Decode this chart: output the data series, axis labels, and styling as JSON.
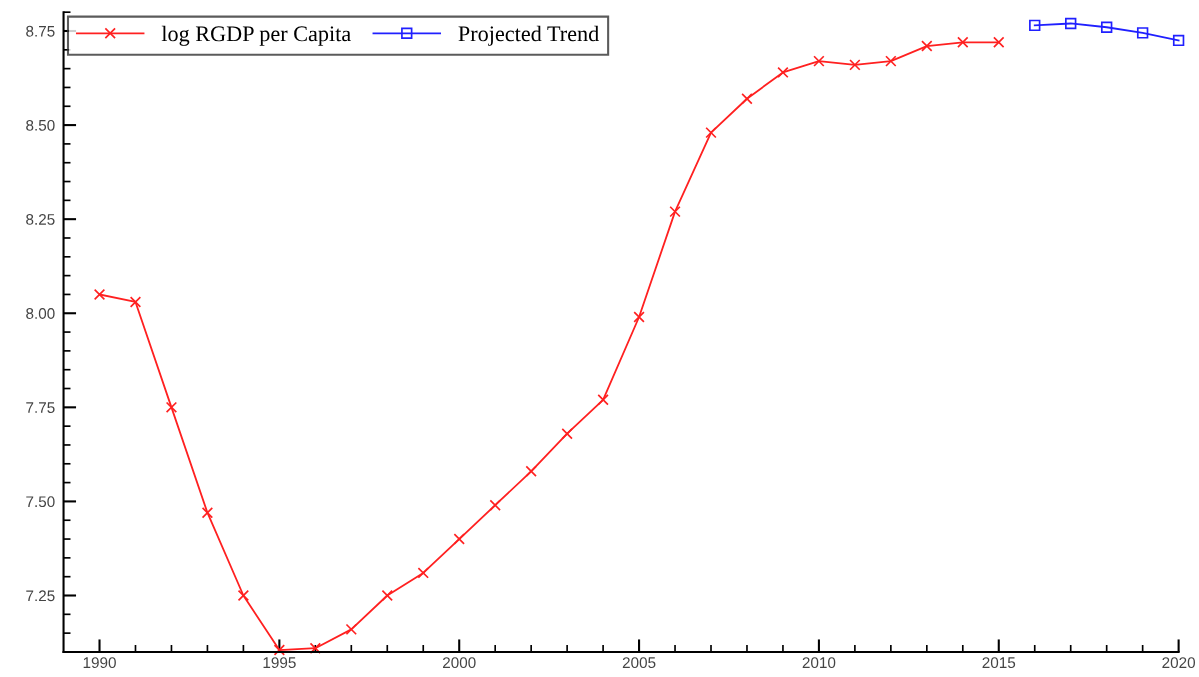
{
  "chart_data": {
    "type": "line",
    "x": [
      1990,
      1991,
      1992,
      1993,
      1994,
      1995,
      1996,
      1997,
      1998,
      1999,
      2000,
      2001,
      2002,
      2003,
      2004,
      2005,
      2006,
      2007,
      2008,
      2009,
      2010,
      2011,
      2012,
      2013,
      2014,
      2015
    ],
    "series": [
      {
        "name": "log RGDP per Capita",
        "color": "#ff2020",
        "marker": "cross",
        "values": [
          8.05,
          8.03,
          7.75,
          7.47,
          7.25,
          7.105,
          7.11,
          7.16,
          7.25,
          7.31,
          7.4,
          7.49,
          7.58,
          7.68,
          7.77,
          7.99,
          8.27,
          8.48,
          8.57,
          8.64,
          8.67,
          8.66,
          8.67,
          8.71,
          8.72,
          8.72
        ]
      },
      {
        "name": "Projected Trend",
        "color": "#2020ff",
        "marker": "square",
        "x": [
          2016,
          2017,
          2018,
          2019,
          2020
        ],
        "values": [
          8.765,
          8.77,
          8.76,
          8.745,
          8.725
        ]
      }
    ],
    "xlim": [
      1989,
      2020
    ],
    "ylim": [
      7.1,
      8.8
    ],
    "xticks": [
      1990,
      1995,
      2000,
      2005,
      2010,
      2015,
      2020
    ],
    "yticks": [
      {
        "value": 7.25,
        "label": "7.25"
      },
      {
        "value": 7.5,
        "label": "7.50"
      },
      {
        "value": 7.75,
        "label": "7.75"
      },
      {
        "value": 8.0,
        "label": "8.00"
      },
      {
        "value": 8.25,
        "label": "8.25"
      },
      {
        "value": 8.5,
        "label": "8.50"
      },
      {
        "value": 8.75,
        "label": "8.75"
      }
    ],
    "grid": false,
    "legend": "top left",
    "line_style": "solid"
  }
}
